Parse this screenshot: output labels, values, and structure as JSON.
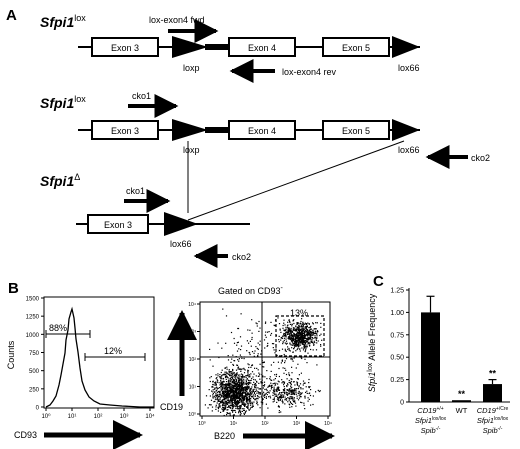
{
  "panel_a": {
    "label": "A",
    "constructs": [
      {
        "name": "Sfpi1",
        "sup": "lox",
        "exons": [
          "Exon 3",
          "Exon 4",
          "Exon 5"
        ],
        "sites": [
          "loxp",
          "lox66"
        ],
        "primers": [
          "lox-exon4 fwd",
          "lox-exon4 rev"
        ]
      },
      {
        "name": "Sfpi1",
        "sup": "lox",
        "exons": [
          "Exon 3",
          "Exon 4",
          "Exon 5"
        ],
        "sites": [
          "loxp",
          "lox66"
        ],
        "primers": [
          "cko1",
          "cko2"
        ]
      },
      {
        "name": "Sfpi1",
        "sup": "Δ",
        "exons": [
          "Exon 3"
        ],
        "sites": [
          "lox66"
        ],
        "primers": [
          "cko1",
          "cko2"
        ]
      }
    ]
  },
  "panel_b": {
    "label": "B",
    "histogram": {
      "ylabel": "Counts",
      "xlabel": "CD93",
      "yticks": [
        "0",
        "250",
        "500",
        "750",
        "1000",
        "1250",
        "1500"
      ],
      "xticks": [
        "10⁰",
        "10¹",
        "10²",
        "10³",
        "10⁴"
      ],
      "gate_left": "88%",
      "gate_right": "12%"
    },
    "dotplot": {
      "title": "Gated on CD93",
      "title_sup": "-",
      "xlabel": "B220",
      "ylabel": "CD19",
      "ticks": [
        "10⁰",
        "10¹",
        "10²",
        "10³",
        "10⁴"
      ],
      "gate_label": "13%"
    }
  },
  "panel_c": {
    "label": "C",
    "ylabel_italic": "Sfpi1",
    "ylabel_sup": "lox",
    "ylabel_rest": " Allele Frequency",
    "yticks": [
      "0",
      "0.25",
      "0.50",
      "0.75",
      "1.00",
      "1.25"
    ],
    "groups": [
      {
        "line1": "CD19",
        "line1_sup": "+/+",
        "line2": "Sfpi1",
        "line2_sup": "lox/lox",
        "line3": "Spib",
        "line3_sup": "-/-",
        "stars": ""
      },
      {
        "line1": "WT",
        "stars": "**"
      },
      {
        "line1": "CD19",
        "line1_sup": "+/Cre",
        "line2": "Sfpi1",
        "line2_sup": "lox/lox",
        "line3": "Spib",
        "line3_sup": "-/-",
        "stars": "**"
      }
    ]
  },
  "chart_data": {
    "type": "bar",
    "categories": [
      "CD19+/+ Sfpi1lox/lox Spib-/-",
      "WT",
      "CD19+/Cre Sfpi1lox/lox Spib-/-"
    ],
    "values": [
      1.0,
      0.02,
      0.2
    ],
    "errors": [
      0.18,
      0.0,
      0.05
    ],
    "xlabel": "",
    "ylabel": "Sfpi1lox Allele Frequency",
    "ylim": [
      0,
      1.25
    ],
    "grid": false,
    "colors": [
      "#000000"
    ]
  }
}
